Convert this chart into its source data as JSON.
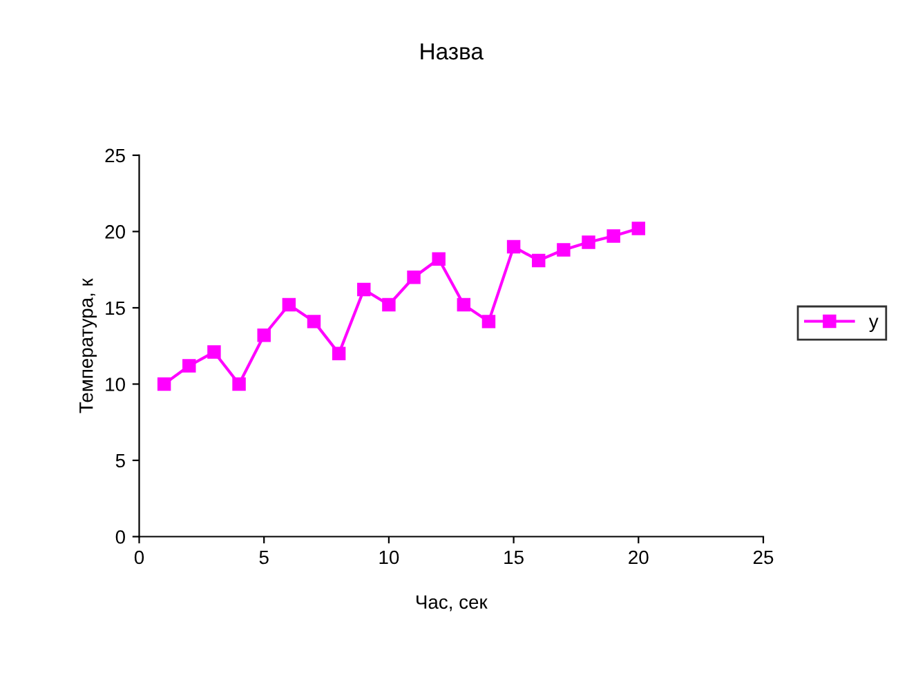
{
  "chart_data": {
    "type": "line",
    "title": "Назва",
    "xlabel": "Час, сек",
    "ylabel": "Температура, к",
    "x": [
      1,
      2,
      3,
      4,
      5,
      6,
      7,
      8,
      9,
      10,
      11,
      12,
      13,
      14,
      15,
      16,
      17,
      18,
      19,
      20
    ],
    "series": [
      {
        "name": "y",
        "color": "#ff00ff",
        "values": [
          10,
          11.2,
          12.1,
          10,
          13.2,
          15.2,
          14.1,
          12,
          16.2,
          15.2,
          17,
          18.2,
          15.2,
          14.1,
          19,
          18.1,
          18.8,
          19.3,
          19.7,
          20.2
        ]
      }
    ],
    "xlim": [
      0,
      25
    ],
    "xticks": [
      0,
      5,
      10,
      15,
      20,
      25
    ],
    "ylim": [
      0,
      25
    ],
    "yticks": [
      0,
      5,
      10,
      15,
      20,
      25
    ],
    "grid": false,
    "legend": "right",
    "marker": "square",
    "line_style": "solid"
  }
}
